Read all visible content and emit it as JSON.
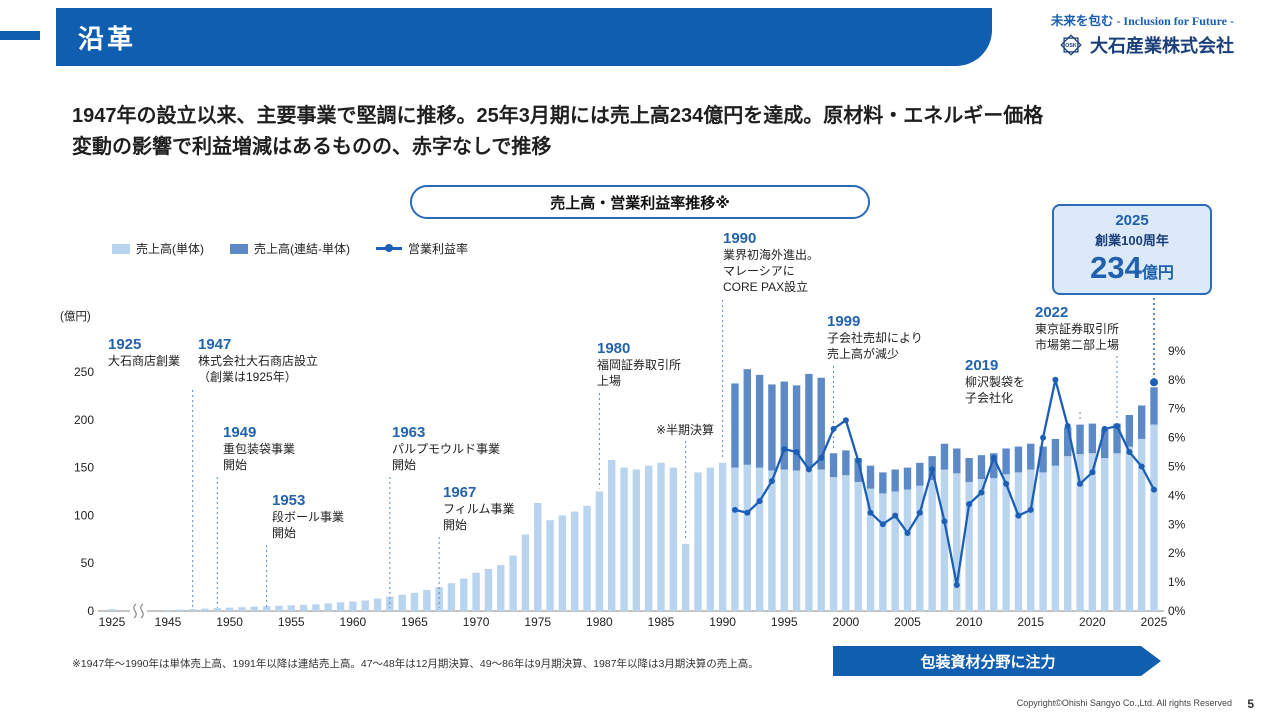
{
  "slide": {
    "header": {
      "title": "沿革",
      "tagline_jp": "未来を包む",
      "tagline_en": " - Inclusion for Future -",
      "company_name": "大石産業株式会社",
      "logo_monogram": "OSK"
    },
    "lead_line1": "1947年の設立以来、主要事業で堅調に推移。25年3月期には売上高234億円を達成。原材料・エネルギー価格",
    "lead_line2": "変動の影響で利益増減はあるものの、赤字なしで推移",
    "footnote": "※1947年～1990年は単体売上高、1991年以降は連結売上高。47～48年は12月期決算、49～86年は9月期決算、1987年以降は3月期決算の売上高。",
    "focus_banner": "包装資材分野に注力",
    "copyright": "Copyright©Ohishi Sangyo Co.,Ltd. All rights Reserved",
    "page_number": "5"
  },
  "chart": {
    "title": "売上高・営業利益率推移※",
    "legend": [
      {
        "label": "売上高(単体)"
      },
      {
        "label": "売上高(連結-単体)"
      },
      {
        "label": "営業利益率"
      }
    ],
    "half_year_note": "※半期決算"
  },
  "callout_2025": {
    "year": "2025",
    "label": "創業100周年",
    "value": "234",
    "unit": "億円"
  },
  "annotations": [
    {
      "year": "1925",
      "lines": [
        "大石商店創業"
      ]
    },
    {
      "year": "1947",
      "lines": [
        "株式会社大石商店設立",
        "（創業は1925年）"
      ]
    },
    {
      "year": "1949",
      "lines": [
        "重包装袋事業",
        "開始"
      ]
    },
    {
      "year": "1953",
      "lines": [
        "段ボール事業",
        "開始"
      ]
    },
    {
      "year": "1963",
      "lines": [
        "パルプモウルド事業",
        "開始"
      ]
    },
    {
      "year": "1967",
      "lines": [
        "フィルム事業",
        "開始"
      ]
    },
    {
      "year": "1980",
      "lines": [
        "福岡証券取引所",
        "上場"
      ]
    },
    {
      "year": "1990",
      "lines": [
        "業界初海外進出。",
        "マレーシアに",
        "CORE PAX設立"
      ]
    },
    {
      "year": "1999",
      "lines": [
        "子会社売却により",
        "売上高が減少"
      ]
    },
    {
      "year": "2019",
      "lines": [
        "柳沢製袋を",
        "子会社化"
      ]
    },
    {
      "year": "2022",
      "lines": [
        "東京証券取引所",
        "市場第二部上場"
      ]
    }
  ],
  "chart_data": {
    "type": "bar",
    "subtype": "stacked bars (売上高, left axis 億円) + line (営業利益率, right axis %)",
    "title": "売上高・営業利益率推移※",
    "left_axis": {
      "label": "(億円)",
      "ticks": [
        0,
        50,
        100,
        150,
        200,
        250
      ]
    },
    "right_axis": {
      "ticks_percent": [
        0,
        1,
        2,
        3,
        4,
        5,
        6,
        7,
        8,
        9
      ]
    },
    "x_tick_years": [
      1925,
      1945,
      1950,
      1955,
      1960,
      1965,
      1970,
      1975,
      1980,
      1985,
      1990,
      1995,
      2000,
      2005,
      2010,
      2015,
      2020,
      2025
    ],
    "axis_break_after_year": 1925,
    "colors": {
      "bar_single": "#b9d4ee",
      "bar_consolidated": "#5b8ac6",
      "line": "#1d5fb6",
      "accent": "#2a6ab8",
      "header_blue": "#0f5eb0"
    },
    "bars": {
      "years": [
        1925,
        1945,
        1946,
        1947,
        1948,
        1949,
        1950,
        1951,
        1952,
        1953,
        1954,
        1955,
        1956,
        1957,
        1958,
        1959,
        1960,
        1961,
        1962,
        1963,
        1964,
        1965,
        1966,
        1967,
        1968,
        1969,
        1970,
        1971,
        1972,
        1973,
        1974,
        1975,
        1976,
        1977,
        1978,
        1979,
        1980,
        1981,
        1982,
        1983,
        1984,
        1985,
        1986,
        1987,
        1988,
        1989,
        1990,
        1991,
        1992,
        1993,
        1994,
        1995,
        1996,
        1997,
        1998,
        1999,
        2000,
        2001,
        2002,
        2003,
        2004,
        2005,
        2006,
        2007,
        2008,
        2009,
        2010,
        2011,
        2012,
        2013,
        2014,
        2015,
        2016,
        2017,
        2018,
        2019,
        2020,
        2021,
        2022,
        2023,
        2024,
        2025
      ],
      "single": [
        2,
        1,
        1.5,
        2,
        2.5,
        3,
        3.5,
        4,
        4.5,
        5,
        5.5,
        6,
        6.5,
        7,
        8,
        9,
        10,
        11,
        13,
        15,
        17,
        19,
        22,
        25,
        29,
        34,
        40,
        44,
        48,
        58,
        80,
        113,
        95,
        100,
        104,
        110,
        125,
        158,
        150,
        148,
        152,
        155,
        150,
        70,
        145,
        150,
        155,
        150,
        153,
        150,
        147,
        148,
        147,
        150,
        148,
        140,
        142,
        135,
        128,
        123,
        125,
        127,
        131,
        137,
        148,
        144,
        135,
        138,
        139,
        143,
        145,
        148,
        145,
        152,
        162,
        164,
        165,
        160,
        165,
        172,
        180,
        195
      ],
      "consolidated_extra": [
        0,
        0,
        0,
        0,
        0,
        0,
        0,
        0,
        0,
        0,
        0,
        0,
        0,
        0,
        0,
        0,
        0,
        0,
        0,
        0,
        0,
        0,
        0,
        0,
        0,
        0,
        0,
        0,
        0,
        0,
        0,
        0,
        0,
        0,
        0,
        0,
        0,
        0,
        0,
        0,
        0,
        0,
        0,
        0,
        0,
        0,
        0,
        88,
        100,
        97,
        90,
        92,
        89,
        98,
        96,
        25,
        26,
        25,
        24,
        22,
        23,
        23,
        24,
        25,
        27,
        26,
        25,
        25,
        26,
        27,
        27,
        27,
        27,
        28,
        30,
        31,
        31,
        30,
        31,
        33,
        35,
        39
      ]
    },
    "line_percent": {
      "name": "営業利益率",
      "years": [
        1991,
        1992,
        1993,
        1994,
        1995,
        1996,
        1997,
        1998,
        1999,
        2000,
        2001,
        2002,
        2003,
        2004,
        2005,
        2006,
        2007,
        2008,
        2009,
        2010,
        2011,
        2012,
        2013,
        2014,
        2015,
        2016,
        2017,
        2018,
        2019,
        2020,
        2021,
        2022,
        2023,
        2024,
        2025
      ],
      "values": [
        3.5,
        3.4,
        3.8,
        4.5,
        5.6,
        5.5,
        4.9,
        5.3,
        6.3,
        6.6,
        5.2,
        3.4,
        3.0,
        3.3,
        2.7,
        3.4,
        4.9,
        3.1,
        0.9,
        3.7,
        4.1,
        5.3,
        4.4,
        3.3,
        3.5,
        6.0,
        8.0,
        6.4,
        4.4,
        4.8,
        6.3,
        6.4,
        5.5,
        5.0,
        4.2
      ]
    }
  }
}
